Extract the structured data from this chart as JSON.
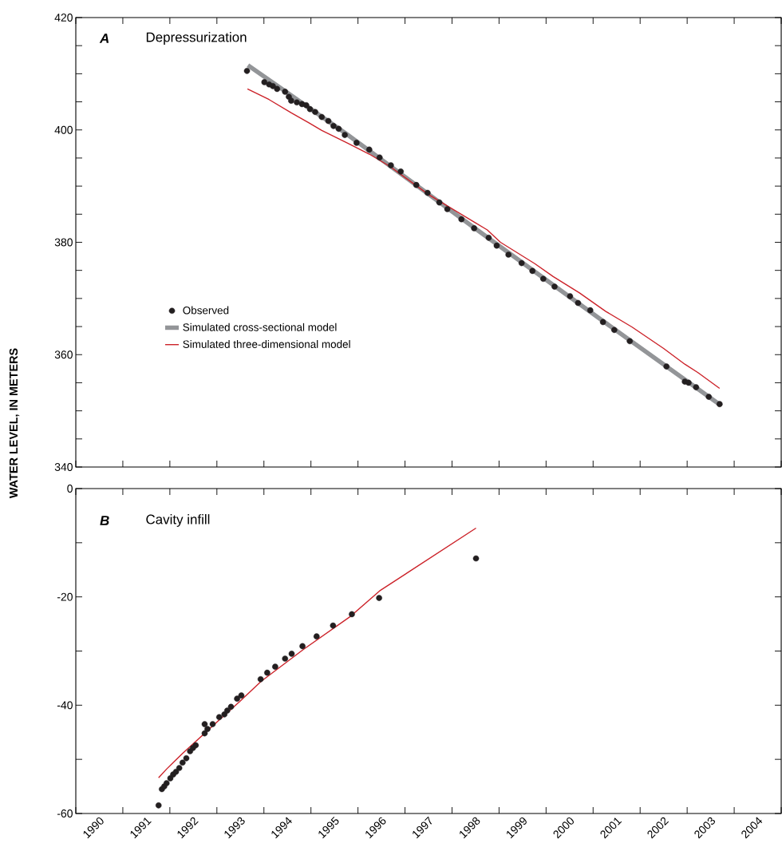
{
  "chart_data": [
    {
      "type": "scatter",
      "title": "Depressurization",
      "annotations": [
        "A"
      ],
      "ylabel": "WATER LEVEL, IN METERS",
      "xlim": [
        1990,
        2005
      ],
      "ylim": [
        340,
        420
      ],
      "xticks": [
        {
          "value": 1990,
          "label": null
        },
        {
          "value": 1991,
          "label": null
        },
        {
          "value": 1992,
          "label": null
        },
        {
          "value": 1993,
          "label": null
        },
        {
          "value": 1994,
          "label": null
        },
        {
          "value": 1995,
          "label": null
        },
        {
          "value": 1996,
          "label": null
        },
        {
          "value": 1997,
          "label": null
        },
        {
          "value": 1998,
          "label": null
        },
        {
          "value": 1999,
          "label": null
        },
        {
          "value": 2000,
          "label": null
        },
        {
          "value": 2001,
          "label": null
        },
        {
          "value": 2002,
          "label": null
        },
        {
          "value": 2003,
          "label": null
        },
        {
          "value": 2004,
          "label": null
        },
        {
          "value": 2005,
          "label": null
        }
      ],
      "yticks": [
        340,
        {
          "value": 345,
          "label": null
        },
        {
          "value": 350,
          "label": null
        },
        {
          "value": 355,
          "label": null
        },
        360,
        {
          "value": 365,
          "label": null
        },
        {
          "value": 370,
          "label": null
        },
        {
          "value": 375,
          "label": null
        },
        380,
        {
          "value": 385,
          "label": null
        },
        {
          "value": 390,
          "label": null
        },
        {
          "value": 395,
          "label": null
        },
        400,
        {
          "value": 405,
          "label": null
        },
        {
          "value": 410,
          "label": null
        },
        {
          "value": 415,
          "label": null
        },
        420
      ],
      "tick_labels": "y",
      "legend": "center left",
      "grid": false,
      "series": [
        {
          "name": "Observed",
          "marker": "circle",
          "color": "#231f20",
          "x": [
            1993.64,
            1994.01,
            1994.11,
            1994.19,
            1994.28,
            1994.45,
            1994.53,
            1994.58,
            1994.7,
            1994.81,
            1994.9,
            1994.98,
            1995.09,
            1995.23,
            1995.37,
            1995.48,
            1995.59,
            1995.72,
            1995.97,
            1996.24,
            1996.46,
            1996.7,
            1996.91,
            1997.24,
            1997.48,
            1997.73,
            1997.9,
            1998.2,
            1998.47,
            1998.78,
            1998.95,
            1999.2,
            1999.48,
            1999.71,
            1999.94,
            2000.18,
            2000.51,
            2000.68,
            2000.94,
            2001.21,
            2001.45,
            2001.78,
            2002.56,
            2002.95,
            2003.03,
            2003.19,
            2003.46,
            2003.69
          ],
          "values": [
            410.5,
            408.5,
            408.1,
            407.8,
            407.3,
            406.8,
            405.9,
            405.2,
            404.9,
            404.6,
            404.4,
            403.7,
            403.2,
            402.3,
            401.6,
            400.7,
            400.2,
            399.1,
            397.7,
            396.5,
            395.1,
            393.7,
            392.6,
            390.2,
            388.8,
            387.1,
            385.9,
            384.1,
            382.5,
            380.8,
            379.4,
            377.8,
            376.3,
            374.9,
            373.5,
            372.1,
            370.4,
            369.2,
            367.9,
            365.8,
            364.4,
            362.4,
            357.9,
            355.2,
            355.0,
            354.2,
            352.5,
            351.2
          ]
        },
        {
          "name": "Simulated cross-sectional model",
          "type": "line",
          "marker": "none",
          "line_style": "solid",
          "color": "#939598",
          "x": [
            1993.66,
            1995.72,
            1998.47,
            2001.16,
            2003.71
          ],
          "values": [
            411.5,
            399.5,
            382.6,
            366.3,
            351.0
          ]
        },
        {
          "name": "Simulated three-dimensional model",
          "type": "line",
          "marker": "none",
          "line_style": "solid",
          "color": "#cc2229",
          "x": [
            1993.65,
            1994.11,
            1994.59,
            1994.95,
            1995.23,
            1995.79,
            1996.24,
            1996.68,
            1997.5,
            1998.47,
            1998.75,
            1999.03,
            1999.76,
            2000.15,
            2000.71,
            2001.27,
            2001.83,
            2002.5,
            2002.95,
            2003.23,
            2003.69
          ],
          "values": [
            407.3,
            405.4,
            403.0,
            401.3,
            399.9,
            397.6,
            395.7,
            393.5,
            388.5,
            383.6,
            382.2,
            380.0,
            376.2,
            373.9,
            371.0,
            367.7,
            364.9,
            361.1,
            358.3,
            356.8,
            354.0
          ]
        }
      ]
    },
    {
      "type": "scatter",
      "title": "Cavity infill",
      "annotations": [
        "B"
      ],
      "xlim": [
        1990,
        2005
      ],
      "ylim": [
        -60,
        0
      ],
      "xticks": [
        {
          "value": 1990,
          "label": null
        },
        {
          "value": 1990.5,
          "label": "1990"
        },
        {
          "value": 1991,
          "label": null
        },
        {
          "value": 1991.5,
          "label": "1991"
        },
        {
          "value": 1992,
          "label": null
        },
        {
          "value": 1992.5,
          "label": "1992"
        },
        {
          "value": 1993,
          "label": null
        },
        {
          "value": 1993.5,
          "label": "1993"
        },
        {
          "value": 1994,
          "label": null
        },
        {
          "value": 1994.5,
          "label": "1994"
        },
        {
          "value": 1995,
          "label": null
        },
        {
          "value": 1995.5,
          "label": "1995"
        },
        {
          "value": 1996,
          "label": null
        },
        {
          "value": 1996.5,
          "label": "1996"
        },
        {
          "value": 1997,
          "label": null
        },
        {
          "value": 1997.5,
          "label": "1997"
        },
        {
          "value": 1998,
          "label": null
        },
        {
          "value": 1998.5,
          "label": "1998"
        },
        {
          "value": 1999,
          "label": null
        },
        {
          "value": 1999.5,
          "label": "1999"
        },
        {
          "value": 2000,
          "label": null
        },
        {
          "value": 2000.5,
          "label": "2000"
        },
        {
          "value": 2001,
          "label": null
        },
        {
          "value": 2001.5,
          "label": "2001"
        },
        {
          "value": 2002,
          "label": null
        },
        {
          "value": 2002.5,
          "label": "2002"
        },
        {
          "value": 2003,
          "label": null
        },
        {
          "value": 2003.5,
          "label": "2003"
        },
        {
          "value": 2004,
          "label": null
        },
        {
          "value": 2004.5,
          "label": "2004"
        },
        {
          "value": 2005,
          "label": null
        }
      ],
      "yticks": [
        -60,
        {
          "value": -50,
          "label": null
        },
        -40,
        {
          "value": -30,
          "label": null
        },
        -20,
        {
          "value": -10,
          "label": null
        },
        0
      ],
      "grid": false,
      "series": [
        {
          "marker": "circle",
          "color": "#231f20",
          "x": [
            1991.76,
            1991.83,
            1991.88,
            1991.93,
            1992.01,
            1992.07,
            1992.13,
            1992.2,
            1992.27,
            1992.35,
            1992.43,
            1992.49,
            1992.55,
            1992.74,
            1992.74,
            1992.8,
            1992.91,
            1993.05,
            1993.16,
            1993.22,
            1993.3,
            1993.43,
            1993.52,
            1993.93,
            1994.07,
            1994.24,
            1994.45,
            1994.59,
            1994.82,
            1995.12,
            1995.47,
            1995.87,
            1996.45,
            1998.51
          ],
          "values": [
            -58.5,
            -55.5,
            -55.0,
            -54.4,
            -53.5,
            -52.8,
            -52.3,
            -51.6,
            -50.6,
            -49.8,
            -48.5,
            -47.9,
            -47.4,
            -43.5,
            -45.2,
            -44.4,
            -43.5,
            -42.2,
            -41.7,
            -41.0,
            -40.3,
            -38.8,
            -38.2,
            -35.2,
            -34.0,
            -32.9,
            -31.4,
            -30.5,
            -29.1,
            -27.3,
            -25.3,
            -23.2,
            -20.2,
            -12.9
          ]
        },
        {
          "type": "line",
          "marker": "none",
          "line_style": "solid",
          "color": "#cc2229",
          "x": [
            1991.76,
            1991.93,
            1992.07,
            1992.27,
            1992.55,
            1992.99,
            1993.49,
            1993.94,
            1994.84,
            1995.84,
            1996.46,
            1998.51
          ],
          "values": [
            -53.4,
            -51.8,
            -50.6,
            -48.9,
            -46.7,
            -43.2,
            -39.3,
            -35.6,
            -29.7,
            -23.6,
            -18.9,
            -7.3
          ]
        }
      ]
    }
  ]
}
